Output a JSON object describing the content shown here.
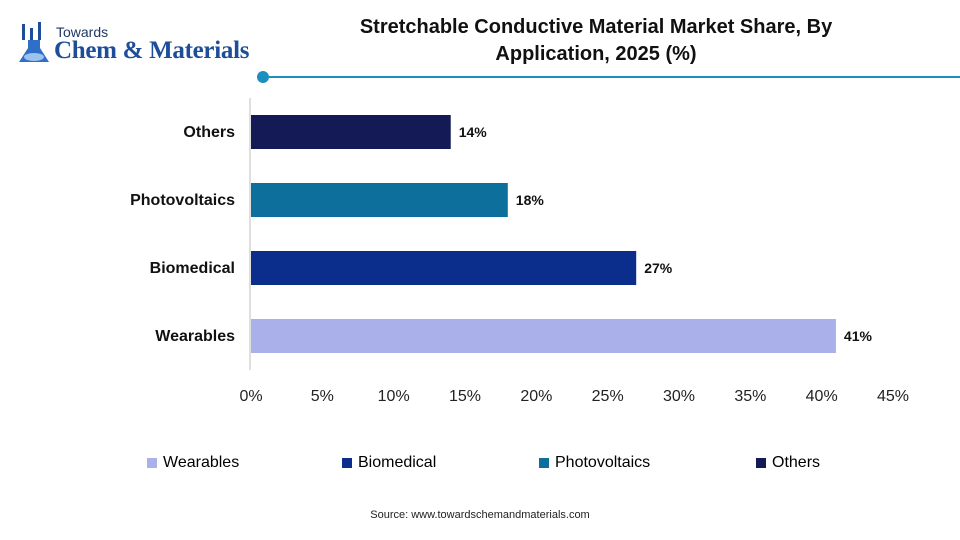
{
  "logo": {
    "top": "Towards",
    "main": "Chem & Materials"
  },
  "chart_data": {
    "type": "bar",
    "orientation": "horizontal",
    "title": "Stretchable Conductive Material Market Share, By Application, 2025 (%)",
    "title_lines": [
      "Stretchable Conductive Material Market Share, By",
      "Application, 2025 (%)"
    ],
    "categories": [
      "Wearables",
      "Biomedical",
      "Photovoltaics",
      "Others"
    ],
    "values": [
      41,
      27,
      18,
      14
    ],
    "data_labels": [
      "41%",
      "27%",
      "18%",
      "14%"
    ],
    "colors": [
      "#a9b0ea",
      "#0b2d8c",
      "#0d6f9c",
      "#131a55"
    ],
    "xlim": [
      0,
      45
    ],
    "x_ticks": [
      0,
      5,
      10,
      15,
      20,
      25,
      30,
      35,
      40,
      45
    ],
    "x_tick_labels": [
      "0%",
      "5%",
      "10%",
      "15%",
      "20%",
      "25%",
      "30%",
      "35%",
      "40%",
      "45%"
    ],
    "grid": false,
    "legend_position": "bottom",
    "legend": [
      "Wearables",
      "Biomedical",
      "Photovoltaics",
      "Others"
    ]
  },
  "source": "Source: www.towardschemandmaterials.com"
}
